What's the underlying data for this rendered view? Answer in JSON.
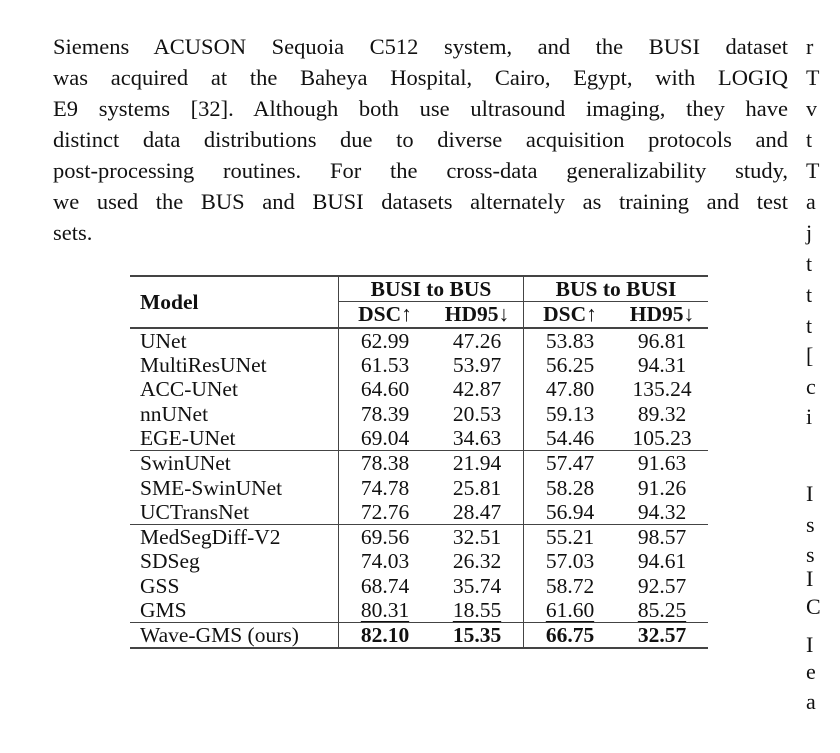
{
  "paragraph": [
    "Siemens ACUSON Sequoia C512 system, and the BUSI dataset",
    "was acquired at the Baheya Hospital, Cairo, Egypt, with LOGIQ",
    "E9 systems [32]. Although both use ultrasound imaging, they have",
    "distinct data distributions due to diverse acquisition protocols and",
    "post-processing routines. For the cross-data generalizability study,",
    "we used the BUS and BUSI datasets alternately as training and test",
    "sets."
  ],
  "right_column_fragments": [
    "r",
    "T",
    "v",
    "t",
    "T",
    "a",
    "j",
    "t",
    "t",
    "t",
    "[",
    "c",
    "i",
    "I",
    "s",
    "s",
    "I",
    "C",
    "I",
    "e",
    "a"
  ],
  "table": {
    "model_header": "Model",
    "groups": [
      "BUSI to BUS",
      "BUS to BUSI"
    ],
    "metrics": [
      "DSC↑",
      "HD95↓",
      "DSC↑",
      "HD95↓"
    ],
    "sections": [
      [
        {
          "model": "UNet",
          "values": [
            "62.99",
            "47.26",
            "53.83",
            "96.81"
          ]
        },
        {
          "model": "MultiResUNet",
          "values": [
            "61.53",
            "53.97",
            "56.25",
            "94.31"
          ]
        },
        {
          "model": "ACC-UNet",
          "values": [
            "64.60",
            "42.87",
            "47.80",
            "135.24"
          ]
        },
        {
          "model": "nnUNet",
          "values": [
            "78.39",
            "20.53",
            "59.13",
            "89.32"
          ]
        },
        {
          "model": "EGE-UNet",
          "values": [
            "69.04",
            "34.63",
            "54.46",
            "105.23"
          ]
        }
      ],
      [
        {
          "model": "SwinUNet",
          "values": [
            "78.38",
            "21.94",
            "57.47",
            "91.63"
          ]
        },
        {
          "model": "SME-SwinUNet",
          "values": [
            "74.78",
            "25.81",
            "58.28",
            "91.26"
          ]
        },
        {
          "model": "UCTransNet",
          "values": [
            "72.76",
            "28.47",
            "56.94",
            "94.32"
          ]
        }
      ],
      [
        {
          "model": "MedSegDiff-V2",
          "values": [
            "69.56",
            "32.51",
            "55.21",
            "98.57"
          ]
        },
        {
          "model": "SDSeg",
          "values": [
            "74.03",
            "26.32",
            "57.03",
            "94.61"
          ]
        },
        {
          "model": "GSS",
          "values": [
            "68.74",
            "35.74",
            "58.72",
            "92.57"
          ]
        },
        {
          "model": "GMS",
          "values": [
            "80.31",
            "18.55",
            "61.60",
            "85.25"
          ],
          "style": "underline"
        }
      ],
      [
        {
          "model": "Wave-GMS (ours)",
          "values": [
            "82.10",
            "15.35",
            "66.75",
            "32.57"
          ],
          "style": "bold"
        }
      ]
    ]
  }
}
